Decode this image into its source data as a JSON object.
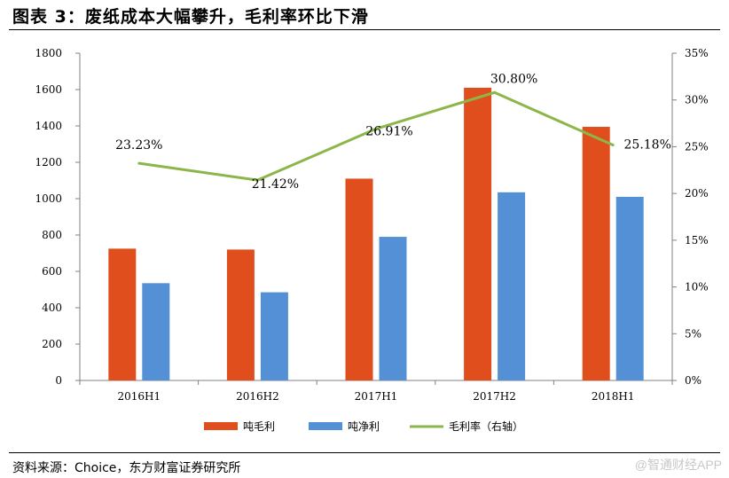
{
  "header": {
    "title": "图表 3：废纸成本大幅攀升，毛利率环比下滑"
  },
  "footer": {
    "source": "资料来源：Choice，东方财富证券研究所",
    "watermark": "@智通财经APP"
  },
  "colors": {
    "gross_profit": "#E04E1E",
    "net_profit": "#5490D6",
    "margin": "#8DB64A",
    "axis": "#808080"
  },
  "chart_data": {
    "type": "bar",
    "categories": [
      "2016H1",
      "2016H2",
      "2017H1",
      "2017H2",
      "2018H1"
    ],
    "series": [
      {
        "name": "吨毛利",
        "type": "bar",
        "axis": "left",
        "values": [
          725,
          720,
          1110,
          1610,
          1395
        ]
      },
      {
        "name": "吨净利",
        "type": "bar",
        "axis": "left",
        "values": [
          535,
          485,
          790,
          1035,
          1010
        ]
      },
      {
        "name": "毛利率（右轴）",
        "type": "line",
        "axis": "right",
        "values": [
          23.23,
          21.42,
          26.91,
          30.8,
          25.18
        ],
        "labels": [
          "23.23%",
          "21.42%",
          "26.91%",
          "30.80%",
          "25.18%"
        ]
      }
    ],
    "ylim": [
      0,
      1800
    ],
    "y_ticks": [
      0,
      200,
      400,
      600,
      800,
      1000,
      1200,
      1400,
      1600,
      1800
    ],
    "y2lim": [
      0,
      35
    ],
    "y2_ticks": [
      "0%",
      "5%",
      "10%",
      "15%",
      "20%",
      "25%",
      "30%",
      "35%"
    ],
    "legend": [
      "吨毛利",
      "吨净利",
      "毛利率（右轴）"
    ],
    "legend_position": "bottom",
    "grid": false
  }
}
